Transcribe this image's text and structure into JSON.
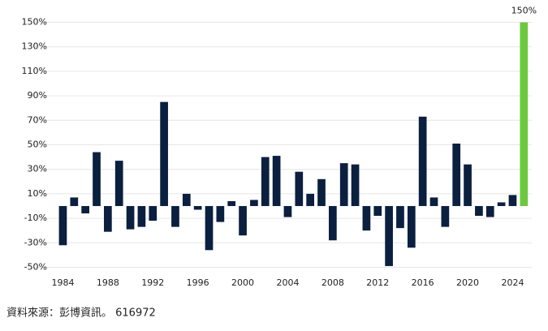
{
  "chart_data": {
    "type": "bar",
    "x": [
      1984,
      1985,
      1986,
      1987,
      1988,
      1989,
      1990,
      1991,
      1992,
      1993,
      1994,
      1995,
      1996,
      1997,
      1998,
      1999,
      2000,
      2001,
      2002,
      2003,
      2004,
      2005,
      2006,
      2007,
      2008,
      2009,
      2010,
      2011,
      2012,
      2013,
      2014,
      2015,
      2016,
      2017,
      2018,
      2019,
      2020,
      2021,
      2022,
      2023,
      2024,
      2025
    ],
    "values": [
      -32,
      7,
      -6,
      44,
      -21,
      37,
      -19,
      -17,
      -12,
      85,
      -17,
      10,
      -3,
      -36,
      -13,
      4,
      -24,
      5,
      40,
      41,
      -9,
      28,
      10,
      22,
      -28,
      35,
      34,
      -20,
      -8,
      -49,
      -18,
      -34,
      73,
      7,
      -17,
      51,
      34,
      -8,
      -9,
      3,
      9,
      150
    ],
    "value_labels": [
      null,
      null,
      null,
      null,
      null,
      null,
      null,
      null,
      null,
      null,
      null,
      null,
      null,
      null,
      null,
      null,
      null,
      null,
      null,
      null,
      null,
      null,
      null,
      null,
      null,
      null,
      null,
      null,
      null,
      null,
      null,
      null,
      null,
      null,
      null,
      null,
      null,
      null,
      null,
      null,
      null,
      "150%"
    ],
    "colors": [
      "#0b1f3f",
      "#0b1f3f",
      "#0b1f3f",
      "#0b1f3f",
      "#0b1f3f",
      "#0b1f3f",
      "#0b1f3f",
      "#0b1f3f",
      "#0b1f3f",
      "#0b1f3f",
      "#0b1f3f",
      "#0b1f3f",
      "#0b1f3f",
      "#0b1f3f",
      "#0b1f3f",
      "#0b1f3f",
      "#0b1f3f",
      "#0b1f3f",
      "#0b1f3f",
      "#0b1f3f",
      "#0b1f3f",
      "#0b1f3f",
      "#0b1f3f",
      "#0b1f3f",
      "#0b1f3f",
      "#0b1f3f",
      "#0b1f3f",
      "#0b1f3f",
      "#0b1f3f",
      "#0b1f3f",
      "#0b1f3f",
      "#0b1f3f",
      "#0b1f3f",
      "#0b1f3f",
      "#0b1f3f",
      "#0b1f3f",
      "#0b1f3f",
      "#0b1f3f",
      "#0b1f3f",
      "#0b1f3f",
      "#0b1f3f",
      "#6cc93f"
    ],
    "xlim": [
      1983.1,
      2025.7
    ],
    "xticks": [
      1984,
      1988,
      1992,
      1996,
      2000,
      2004,
      2008,
      2012,
      2016,
      2020,
      2024
    ],
    "ylim": [
      -55,
      155
    ],
    "yticks": [
      {
        "value": 150,
        "label": "150%"
      },
      {
        "value": 130,
        "label": "130%"
      },
      {
        "value": 110,
        "label": "110%"
      },
      {
        "value": 90,
        "label": "90%"
      },
      {
        "value": 70,
        "label": "70%"
      },
      {
        "value": 50,
        "label": "50%"
      },
      {
        "value": 30,
        "label": "30%"
      },
      {
        "value": 10,
        "label": "10%"
      },
      {
        "value": -10,
        "label": "-10%"
      },
      {
        "value": -30,
        "label": "-30%"
      },
      {
        "value": -50,
        "label": "-50%"
      }
    ],
    "grid": true,
    "source": "資料來源：彭博資訊。 616972"
  }
}
